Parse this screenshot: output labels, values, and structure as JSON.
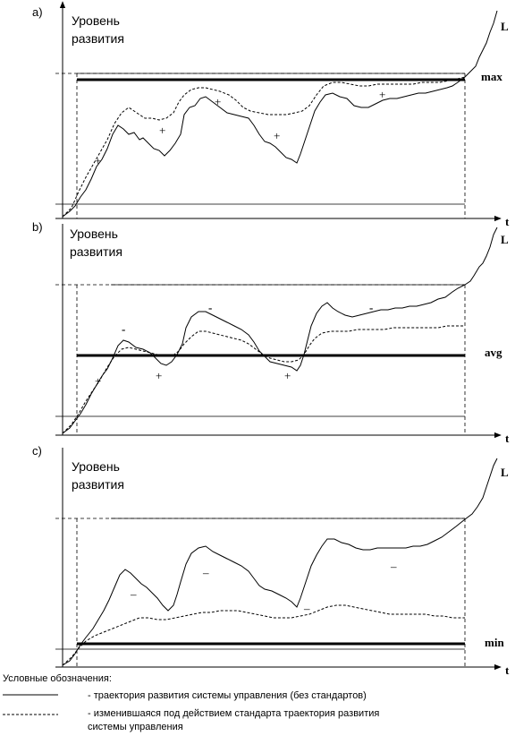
{
  "panels": [
    {
      "id": "a",
      "label": "a)",
      "ylabel_line1": "Уровень",
      "ylabel_line2": "развития",
      "xlabel": "t",
      "curve_label": "L",
      "standard_label": "max",
      "signs": [
        "+",
        "+",
        "+",
        "+",
        "+"
      ]
    },
    {
      "id": "b",
      "label": "b)",
      "ylabel_line1": "Уровень",
      "ylabel_line2": "развития",
      "xlabel": "t",
      "curve_label": "L",
      "standard_label": "avg",
      "signs": [
        "+",
        "+",
        "+",
        "-",
        "-",
        "-"
      ]
    },
    {
      "id": "c",
      "label": "c)",
      "ylabel_line1": "Уровень",
      "ylabel_line2": "развития",
      "xlabel": "t",
      "curve_label": "L",
      "standard_label": "min",
      "signs": [
        "–",
        "–",
        "–",
        "–"
      ]
    }
  ],
  "legend": {
    "title": "Условные обозначения:",
    "solid_text": "- траектория развития системы управления (без стандартов)",
    "dashed_text_line1": "- изменившаяся под действием стандарта траектория развития",
    "dashed_text_line2": "системы управления"
  }
}
